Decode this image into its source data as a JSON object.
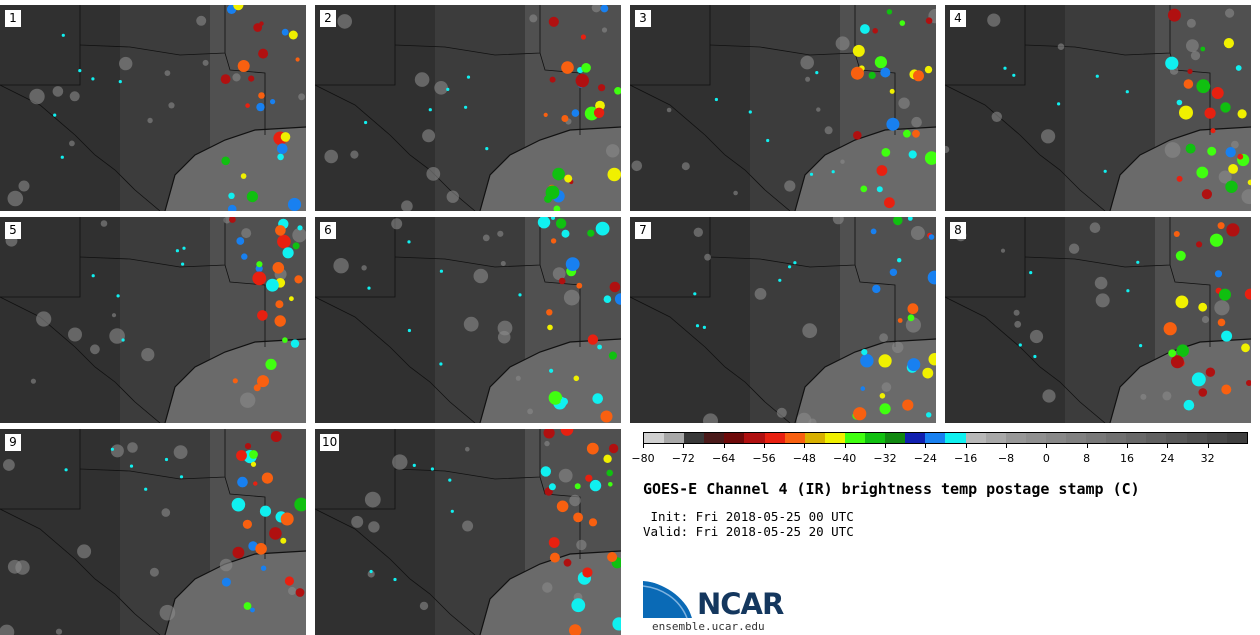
{
  "panels": [
    {
      "label": "1"
    },
    {
      "label": "2"
    },
    {
      "label": "3"
    },
    {
      "label": "4"
    },
    {
      "label": "5"
    },
    {
      "label": "6"
    },
    {
      "label": "7"
    },
    {
      "label": "8"
    },
    {
      "label": "9"
    },
    {
      "label": "10"
    }
  ],
  "colorbar": {
    "unit": "C",
    "min": -80,
    "max": 40,
    "tick_labels": [
      "−80",
      "−72",
      "−64",
      "−56",
      "−48",
      "−40",
      "−32",
      "−24",
      "−16",
      "−8",
      "0",
      "8",
      "16",
      "24",
      "32"
    ],
    "tick_values": [
      -80,
      -72,
      -64,
      -56,
      -48,
      -40,
      -32,
      -24,
      -16,
      -8,
      0,
      8,
      16,
      24,
      32
    ],
    "colors": [
      "#d0d0d0",
      "#a8a8a8",
      "#383838",
      "#4a1a1a",
      "#6e0a0a",
      "#b01010",
      "#e82010",
      "#f86010",
      "#d8b000",
      "#f0f000",
      "#40ff10",
      "#10c010",
      "#108810",
      "#1020b0",
      "#1880f0",
      "#10f0f0",
      "#b8b8b8",
      "#a8a8a8",
      "#989898",
      "#909090",
      "#888888",
      "#808080",
      "#787878",
      "#707070",
      "#686868",
      "#606060",
      "#585858",
      "#505050",
      "#484848",
      "#404040"
    ]
  },
  "title": "GOES-E Channel 4 (IR) brightness temp postage stamp (C)",
  "init_line": " Init: Fri 2018-05-25 00 UTC",
  "valid_line": "Valid: Fri 2018-05-25 20 UTC",
  "logo": {
    "text": "NCAR",
    "url": "ensemble.ucar.edu",
    "color_blue": "#0a6ab6",
    "color_navy": "#14375e"
  }
}
